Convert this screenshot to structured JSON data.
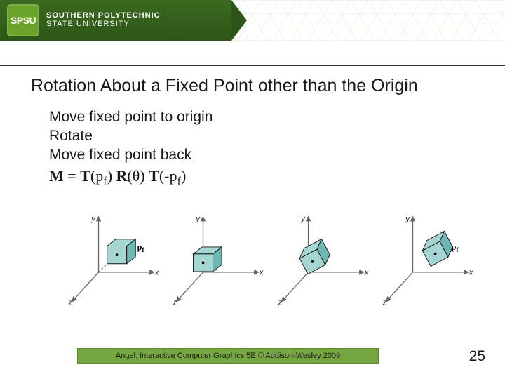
{
  "header": {
    "logo_abbrev": "SPSU",
    "logo_line1": "SOUTHERN POLYTECHNIC",
    "logo_line2": "STATE UNIVERSITY",
    "banner_colors": {
      "top": "#3a6a1f",
      "bottom": "#2d5518",
      "badge": "#6aa32a"
    }
  },
  "title": "Rotation About a Fixed Point other than the Origin",
  "bullets": {
    "b1": "Move fixed point to origin",
    "b2": "Rotate",
    "b3": "Move fixed point back"
  },
  "formula": {
    "lhs": "M",
    "eq": " = ",
    "t1a": "T",
    "t1b": "(p",
    "t1sub": "f",
    "t1c": ") ",
    "r1a": "R",
    "r1b": "(θ) ",
    "t2a": "T",
    "t2b": "(-p",
    "t2sub": "f",
    "t2c": ")"
  },
  "diagram": {
    "axis_labels": {
      "x": "x",
      "y": "y",
      "z": "z"
    },
    "point_label": "p",
    "point_label_sub": "f",
    "colors": {
      "axis": "#666666",
      "cube_fill": "#a6d6d1",
      "cube_stroke": "#121212",
      "cube_shadow": "#6eb7b3",
      "dot": "#000000",
      "dashed": "#555555"
    },
    "panels": [
      {
        "cube_offset": [
          28,
          -12
        ],
        "show_pf": true,
        "show_dash_to_origin": true,
        "rotated": false
      },
      {
        "cube_offset": [
          0,
          0
        ],
        "show_pf": false,
        "show_dash_to_origin": false,
        "rotated": false
      },
      {
        "cube_offset": [
          0,
          0
        ],
        "show_pf": false,
        "show_dash_to_origin": false,
        "rotated": true
      },
      {
        "cube_offset": [
          28,
          -12
        ],
        "show_pf": true,
        "show_dash_to_origin": false,
        "rotated": true
      }
    ]
  },
  "footer": {
    "credit": "Angel: Interactive Computer Graphics 5E © Addison-Wesley 2009",
    "bar_color": "#76a640"
  },
  "slide_number": "25"
}
